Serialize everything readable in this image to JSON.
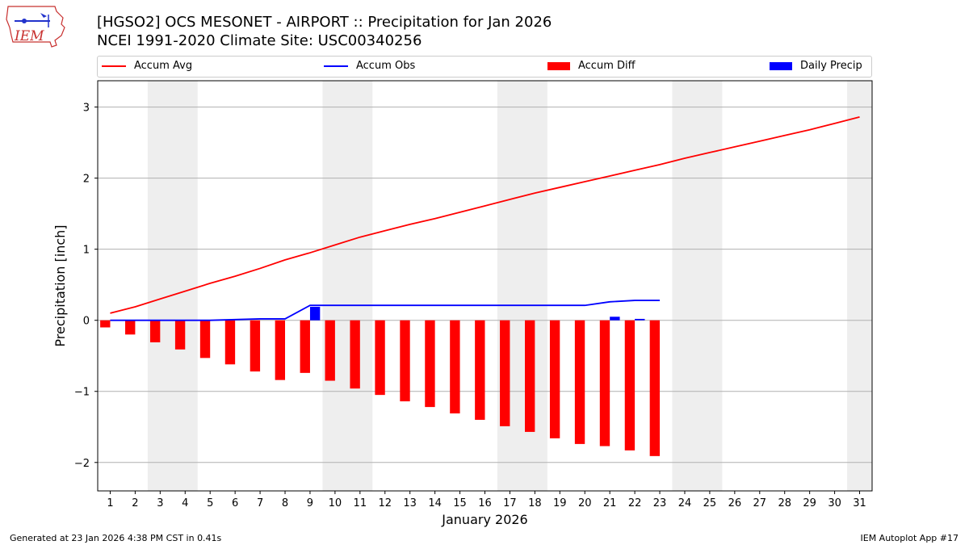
{
  "header": {
    "logo_text": "IEM",
    "title_line1": "[HGSO2] OCS MESONET - AIRPORT :: Precipitation for Jan 2026",
    "title_line2": "NCEI 1991-2020 Climate Site: USC00340256"
  },
  "legend": [
    {
      "label": "Accum Avg",
      "color": "#ff0000",
      "kind": "line"
    },
    {
      "label": "Accum Obs",
      "color": "#0000ff",
      "kind": "line"
    },
    {
      "label": "Accum Diff",
      "color": "#ff0000",
      "kind": "bar"
    },
    {
      "label": "Daily Precip",
      "color": "#0000ff",
      "kind": "bar"
    }
  ],
  "footer": {
    "left": "Generated at 23 Jan 2026 4:38 PM CST in 0.41s",
    "right": "IEM Autoplot App #17"
  },
  "colors": {
    "avg": "#ff0000",
    "obs": "#0000ff",
    "diff": "#ff0000",
    "daily": "#0000ff",
    "weekend": "#eeeeee",
    "grid": "#b0b0b0"
  },
  "chart_data": {
    "type": "line",
    "title": "[HGSO2] OCS MESONET - AIRPORT :: Precipitation for Jan 2026",
    "xlabel": "January 2026",
    "ylabel": "Precipitation [inch]",
    "xlim": [
      0.5,
      31.5
    ],
    "ylim": [
      -2.4,
      3.37
    ],
    "yticks": [
      -2,
      -1,
      0,
      1,
      2,
      3
    ],
    "ytick_labels": [
      "−2",
      "−1",
      "0",
      "1",
      "2",
      "3"
    ],
    "categories": [
      "1",
      "2",
      "3",
      "4",
      "5",
      "6",
      "7",
      "8",
      "9",
      "10",
      "11",
      "12",
      "13",
      "14",
      "15",
      "16",
      "17",
      "18",
      "19",
      "20",
      "21",
      "22",
      "23",
      "24",
      "25",
      "26",
      "27",
      "28",
      "29",
      "30",
      "31"
    ],
    "weekend_spans": [
      [
        2.5,
        4.5
      ],
      [
        9.5,
        11.5
      ],
      [
        16.5,
        18.5
      ],
      [
        23.5,
        25.5
      ],
      [
        30.5,
        31.5
      ]
    ],
    "series": [
      {
        "name": "Accum Avg",
        "kind": "line",
        "x": [
          1,
          2,
          3,
          4,
          5,
          6,
          7,
          8,
          9,
          10,
          11,
          12,
          13,
          14,
          15,
          16,
          17,
          18,
          19,
          20,
          21,
          22,
          23,
          24,
          25,
          26,
          27,
          28,
          29,
          30,
          31
        ],
        "values": [
          0.1,
          0.19,
          0.3,
          0.41,
          0.52,
          0.62,
          0.73,
          0.85,
          0.95,
          1.06,
          1.17,
          1.26,
          1.35,
          1.43,
          1.52,
          1.61,
          1.7,
          1.79,
          1.87,
          1.95,
          2.03,
          2.11,
          2.19,
          2.28,
          2.36,
          2.44,
          2.52,
          2.6,
          2.68,
          2.77,
          2.86
        ]
      },
      {
        "name": "Accum Obs",
        "kind": "line",
        "x": [
          1,
          2,
          3,
          4,
          5,
          6,
          7,
          8,
          9,
          10,
          11,
          12,
          13,
          14,
          15,
          16,
          17,
          18,
          19,
          20,
          21,
          22,
          23
        ],
        "values": [
          0.0,
          0.0,
          0.0,
          0.0,
          0.0,
          0.01,
          0.02,
          0.02,
          0.21,
          0.21,
          0.21,
          0.21,
          0.21,
          0.21,
          0.21,
          0.21,
          0.21,
          0.21,
          0.21,
          0.21,
          0.26,
          0.28,
          0.28
        ]
      },
      {
        "name": "Accum Diff",
        "kind": "bar",
        "x": [
          1,
          2,
          3,
          4,
          5,
          6,
          7,
          8,
          9,
          10,
          11,
          12,
          13,
          14,
          15,
          16,
          17,
          18,
          19,
          20,
          21,
          22,
          23
        ],
        "values": [
          -0.1,
          -0.2,
          -0.31,
          -0.41,
          -0.53,
          -0.62,
          -0.72,
          -0.84,
          -0.74,
          -0.85,
          -0.96,
          -1.05,
          -1.14,
          -1.22,
          -1.31,
          -1.4,
          -1.49,
          -1.57,
          -1.66,
          -1.74,
          -1.77,
          -1.83,
          -1.91
        ]
      },
      {
        "name": "Daily Precip",
        "kind": "bar",
        "x": [
          9,
          21,
          22
        ],
        "values": [
          0.19,
          0.05,
          0.02
        ]
      }
    ]
  }
}
